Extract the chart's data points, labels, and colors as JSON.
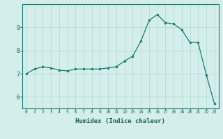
{
  "x": [
    0,
    1,
    2,
    3,
    4,
    5,
    6,
    7,
    8,
    9,
    10,
    11,
    12,
    13,
    14,
    15,
    16,
    17,
    18,
    19,
    20,
    21,
    22,
    23
  ],
  "y": [
    7.0,
    7.2,
    7.3,
    7.25,
    7.15,
    7.12,
    7.2,
    7.2,
    7.2,
    7.2,
    7.25,
    7.3,
    7.55,
    7.75,
    8.4,
    9.3,
    9.55,
    9.2,
    9.15,
    8.9,
    8.35,
    8.35,
    6.95,
    5.7
  ],
  "line_color": "#1a7a6e",
  "marker": "o",
  "marker_size": 2.0,
  "xlabel": "Humidex (Indice chaleur)",
  "xlabel_fontsize": 6.5,
  "bg_color": "#d4eeeb",
  "grid_color": "#b0d8d4",
  "axis_color": "#1a7a6e",
  "tick_label_color": "#1a5f58",
  "ylim": [
    5.5,
    10.0
  ],
  "xlim": [
    -0.5,
    23.5
  ],
  "yticks": [
    6,
    7,
    8,
    9
  ],
  "xticks": [
    0,
    1,
    2,
    3,
    4,
    5,
    6,
    7,
    8,
    9,
    10,
    11,
    12,
    13,
    14,
    15,
    16,
    17,
    18,
    19,
    20,
    21,
    22,
    23
  ]
}
